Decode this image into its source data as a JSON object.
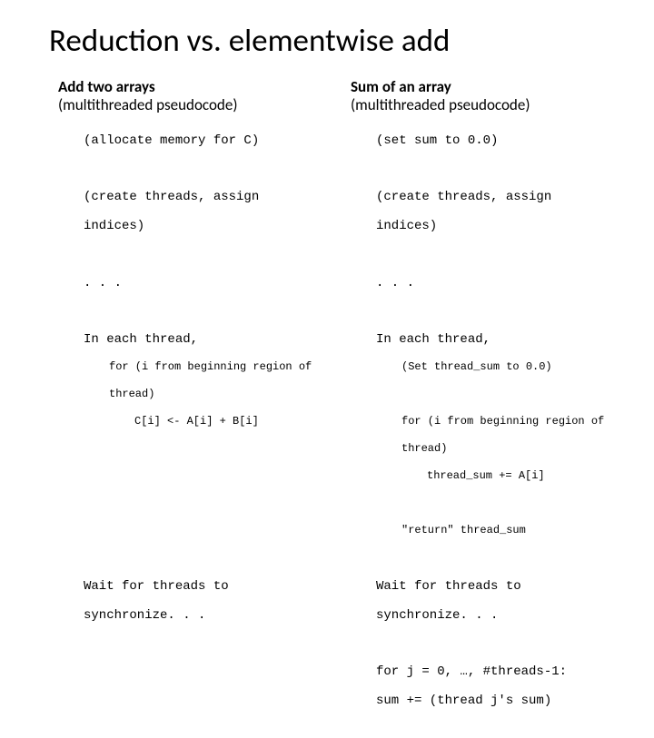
{
  "title": "Reduction vs. elementwise add",
  "colors": {
    "bg": "#ffffff",
    "text": "#000000"
  },
  "fonts": {
    "title_size": 35,
    "heading_size": 17,
    "code_size": 14,
    "code_small": 12
  },
  "left": {
    "heading": "Add two arrays",
    "subheading": "(multithreaded pseudocode)",
    "l1": "(allocate memory for C)",
    "l2a": "(create threads, assign",
    "l2b": "indices)",
    "l3": ". . .",
    "l4": "In each thread,",
    "l5a": "for (i from beginning region of",
    "l5b": "thread)",
    "l6": "C[i] <- A[i] + B[i]",
    "l7a": "Wait for threads to",
    "l7b": "synchronize. . ."
  },
  "right": {
    "heading": "Sum of an array",
    "subheading": "(multithreaded pseudocode)",
    "r1": "(set sum to 0.0)",
    "r2a": "(create threads, assign",
    "r2b": "indices)",
    "r3": ". . .",
    "r4": "In each thread,",
    "r5": "(Set thread_sum to 0.0)",
    "r6a": "for (i from beginning region of",
    "r6b": "thread)",
    "r7": "thread_sum += A[i]",
    "r8": "\"return\" thread_sum",
    "r9a": "Wait for threads to",
    "r9b": "synchronize. . .",
    "r10a": "for j = 0, …, #threads-1:",
    "r10b": "sum += (thread j's sum)"
  }
}
